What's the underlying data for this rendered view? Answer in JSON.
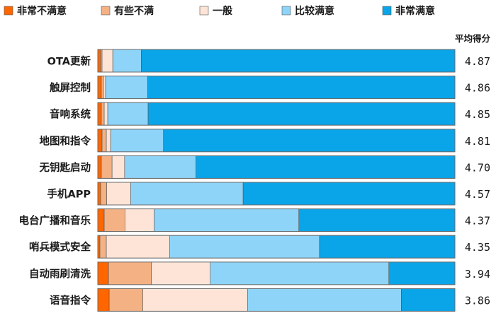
{
  "chart_data": {
    "type": "bar",
    "orientation": "horizontal",
    "stacked": true,
    "percent": true,
    "legend_position": "top",
    "series": [
      {
        "name": "非常不满意",
        "color": "#ff6600",
        "values": [
          0.8,
          1.0,
          1.0,
          1.2,
          1.0,
          0.8,
          1.8,
          0.6,
          3.0,
          3.2
        ]
      },
      {
        "name": "有些不满",
        "color": "#f4b183",
        "values": [
          0.4,
          0.6,
          0.8,
          1.2,
          3.0,
          1.7,
          5.8,
          1.8,
          12.0,
          9.4
        ]
      },
      {
        "name": "一般",
        "color": "#fde4d6",
        "values": [
          3.0,
          0.6,
          1.0,
          1.2,
          3.5,
          6.7,
          8.2,
          17.7,
          16.5,
          29.4
        ]
      },
      {
        "name": "比较满意",
        "color": "#8dd4f8",
        "values": [
          8.0,
          11.8,
          11.3,
          14.8,
          20.0,
          31.5,
          40.5,
          42.0,
          50.0,
          43.0
        ]
      },
      {
        "name": "非常满意",
        "color": "#0aa4e8",
        "values": [
          87.8,
          86.0,
          85.9,
          81.6,
          72.5,
          59.3,
          43.7,
          37.9,
          18.5,
          15.0
        ]
      }
    ],
    "categories": [
      "OTA更新",
      "触屏控制",
      "音响系统",
      "地图和指令",
      "无钥匙启动",
      "手机APP",
      "电台广播和音乐",
      "哨兵模式安全",
      "自动雨刷清洗",
      "语音指令"
    ],
    "scores_title": "平均得分",
    "scores": [
      "4.87",
      "4.86",
      "4.85",
      "4.81",
      "4.70",
      "4.57",
      "4.37",
      "4.35",
      "3.94",
      "3.86"
    ],
    "xlim": [
      0,
      100
    ],
    "grid": false
  }
}
